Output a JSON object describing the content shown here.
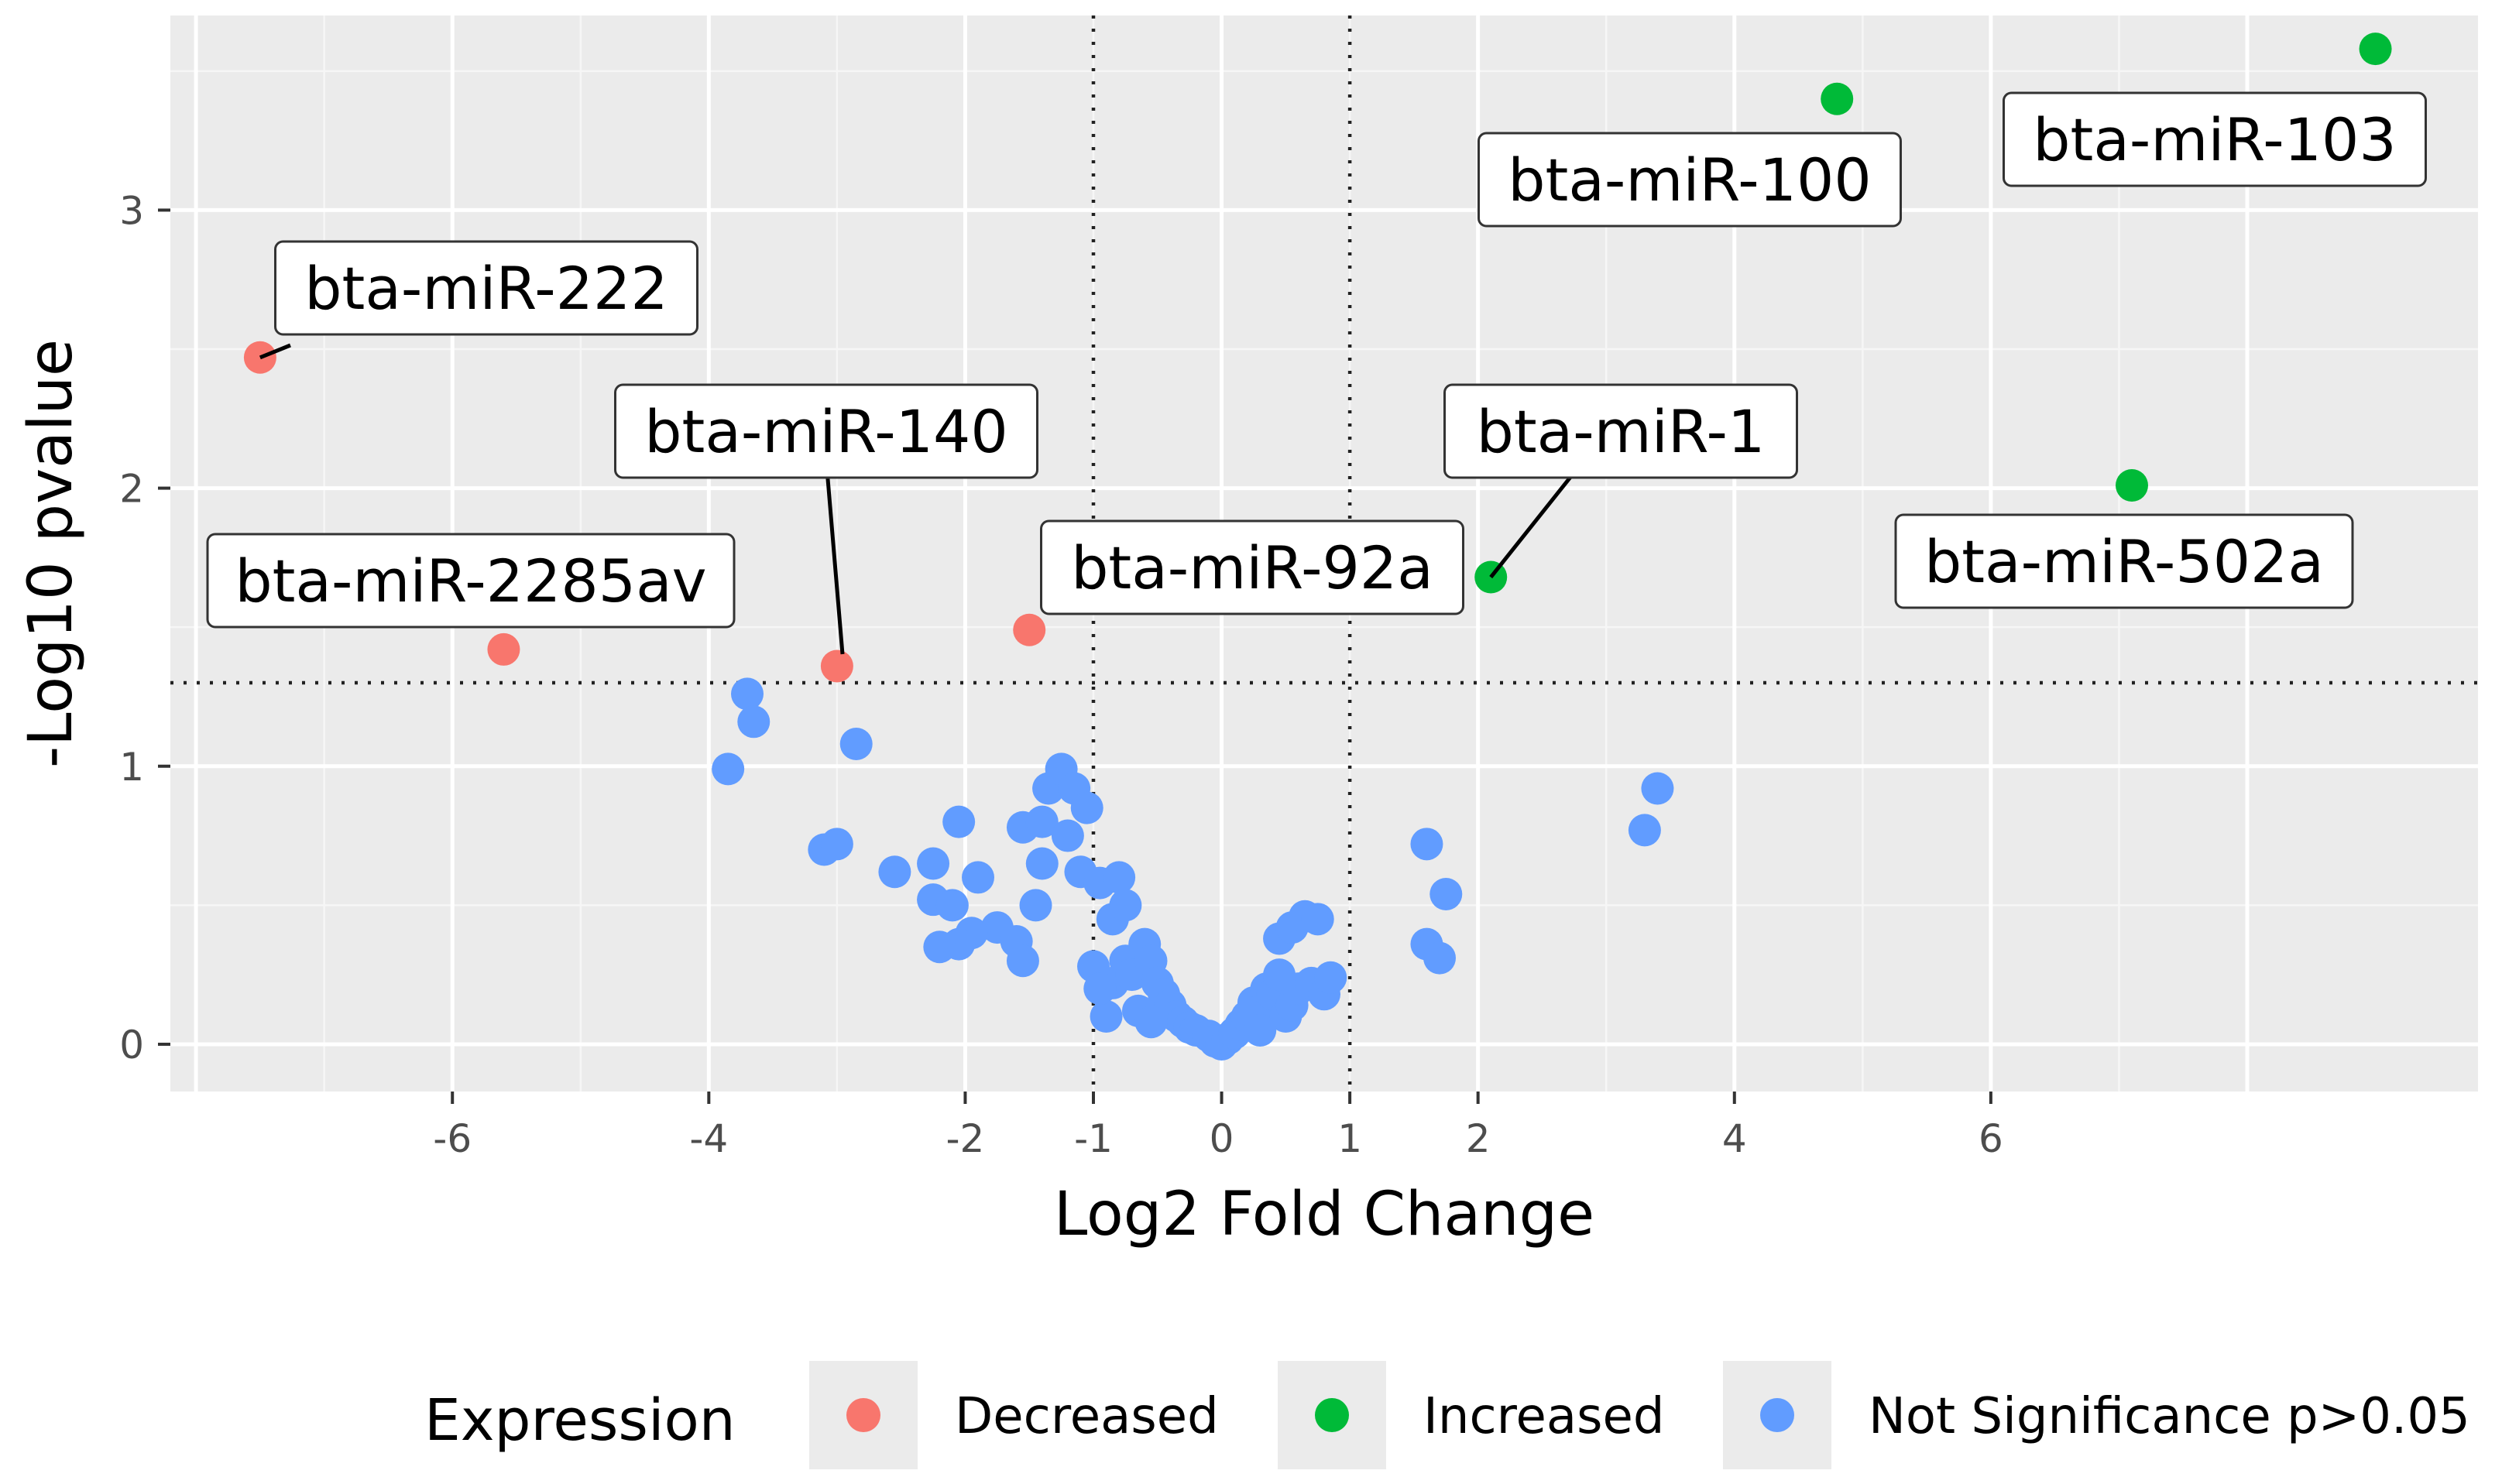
{
  "chart_data": {
    "type": "scatter",
    "xlabel": "Log2 Fold Change",
    "ylabel": "-Log10 pvalue",
    "xlim": [
      -8.2,
      9.8
    ],
    "ylim": [
      -0.17,
      3.7
    ],
    "x_ticks": [
      -6,
      -4,
      -2,
      -1,
      0,
      1,
      2,
      4,
      6
    ],
    "y_ticks": [
      0,
      1,
      2,
      3
    ],
    "x_gridlines": [
      -8,
      -6,
      -4,
      -2,
      0,
      2,
      4,
      6,
      8
    ],
    "y_gridlines": [
      0,
      1,
      2,
      3
    ],
    "thresholds": {
      "x": [
        -1,
        1
      ],
      "y": 1.3
    },
    "legend": {
      "title": "Expression",
      "position": "bottom",
      "items": [
        {
          "key": "decreased",
          "label": "Decreased",
          "color": "#F8766D"
        },
        {
          "key": "increased",
          "label": "Increased",
          "color": "#00BA38"
        },
        {
          "key": "ns",
          "label": "Not Significance p>0.05",
          "color": "#619CFF"
        }
      ]
    },
    "series": [
      {
        "name": "Decreased",
        "color": "#F8766D",
        "points": [
          {
            "x": -7.5,
            "y": 2.47,
            "label": "bta-miR-222"
          },
          {
            "x": -5.6,
            "y": 1.42,
            "label": "bta-miR-2285av"
          },
          {
            "x": -3.0,
            "y": 1.36,
            "label": "bta-miR-140"
          },
          {
            "x": -1.5,
            "y": 1.49,
            "label": "bta-miR-92a"
          }
        ]
      },
      {
        "name": "Increased",
        "color": "#00BA38",
        "points": [
          {
            "x": 4.8,
            "y": 3.4,
            "label": "bta-miR-100"
          },
          {
            "x": 9.0,
            "y": 3.58,
            "label": "bta-miR-103"
          },
          {
            "x": 2.1,
            "y": 1.68,
            "label": "bta-miR-1"
          },
          {
            "x": 7.1,
            "y": 2.01,
            "label": "bta-miR-502a"
          }
        ]
      },
      {
        "name": "Not Significance p>0.05",
        "color": "#619CFF",
        "points": [
          {
            "x": -3.7,
            "y": 1.26
          },
          {
            "x": -3.65,
            "y": 1.16
          },
          {
            "x": -3.85,
            "y": 0.99
          },
          {
            "x": -2.85,
            "y": 1.08
          },
          {
            "x": -3.1,
            "y": 0.7
          },
          {
            "x": -3.0,
            "y": 0.72
          },
          {
            "x": -2.55,
            "y": 0.62
          },
          {
            "x": -2.05,
            "y": 0.8
          },
          {
            "x": -2.25,
            "y": 0.65
          },
          {
            "x": -2.25,
            "y": 0.52
          },
          {
            "x": -2.1,
            "y": 0.5
          },
          {
            "x": -1.9,
            "y": 0.6
          },
          {
            "x": -1.75,
            "y": 0.42
          },
          {
            "x": -1.95,
            "y": 0.4
          },
          {
            "x": -2.05,
            "y": 0.36
          },
          {
            "x": -2.2,
            "y": 0.35
          },
          {
            "x": -1.6,
            "y": 0.37
          },
          {
            "x": -1.55,
            "y": 0.3
          },
          {
            "x": -1.45,
            "y": 0.5
          },
          {
            "x": -1.55,
            "y": 0.78
          },
          {
            "x": -1.4,
            "y": 0.8
          },
          {
            "x": -1.4,
            "y": 0.65
          },
          {
            "x": -1.35,
            "y": 0.92
          },
          {
            "x": -1.25,
            "y": 0.99
          },
          {
            "x": -1.15,
            "y": 0.92
          },
          {
            "x": -1.2,
            "y": 0.75
          },
          {
            "x": -1.05,
            "y": 0.85
          },
          {
            "x": -1.1,
            "y": 0.62
          },
          {
            "x": -0.95,
            "y": 0.58
          },
          {
            "x": -0.85,
            "y": 0.45
          },
          {
            "x": -0.8,
            "y": 0.6
          },
          {
            "x": -0.75,
            "y": 0.5
          },
          {
            "x": -1.0,
            "y": 0.28
          },
          {
            "x": -0.85,
            "y": 0.22
          },
          {
            "x": -0.75,
            "y": 0.3
          },
          {
            "x": -0.7,
            "y": 0.25
          },
          {
            "x": -0.6,
            "y": 0.36
          },
          {
            "x": -0.55,
            "y": 0.3
          },
          {
            "x": -0.5,
            "y": 0.22
          },
          {
            "x": -0.45,
            "y": 0.18
          },
          {
            "x": -0.4,
            "y": 0.14
          },
          {
            "x": -0.35,
            "y": 0.1
          },
          {
            "x": -0.3,
            "y": 0.08
          },
          {
            "x": -0.25,
            "y": 0.06
          },
          {
            "x": -0.2,
            "y": 0.05
          },
          {
            "x": -0.1,
            "y": 0.03
          },
          {
            "x": -0.05,
            "y": 0.01
          },
          {
            "x": 0.0,
            "y": 0.0
          },
          {
            "x": 0.05,
            "y": 0.02
          },
          {
            "x": 0.1,
            "y": 0.04
          },
          {
            "x": -0.65,
            "y": 0.12
          },
          {
            "x": -0.9,
            "y": 0.1
          },
          {
            "x": -0.95,
            "y": 0.2
          },
          {
            "x": -0.55,
            "y": 0.08
          },
          {
            "x": 0.15,
            "y": 0.07
          },
          {
            "x": 0.2,
            "y": 0.1
          },
          {
            "x": 0.25,
            "y": 0.15
          },
          {
            "x": 0.3,
            "y": 0.12
          },
          {
            "x": 0.35,
            "y": 0.2
          },
          {
            "x": 0.4,
            "y": 0.18
          },
          {
            "x": 0.45,
            "y": 0.25
          },
          {
            "x": 0.5,
            "y": 0.1
          },
          {
            "x": 0.55,
            "y": 0.14
          },
          {
            "x": 0.6,
            "y": 0.2
          },
          {
            "x": 0.3,
            "y": 0.05
          },
          {
            "x": 0.45,
            "y": 0.38
          },
          {
            "x": 0.55,
            "y": 0.42
          },
          {
            "x": 0.65,
            "y": 0.46
          },
          {
            "x": 0.75,
            "y": 0.45
          },
          {
            "x": 0.7,
            "y": 0.22
          },
          {
            "x": 0.8,
            "y": 0.18
          },
          {
            "x": 0.85,
            "y": 0.24
          },
          {
            "x": 1.6,
            "y": 0.72
          },
          {
            "x": 1.75,
            "y": 0.54
          },
          {
            "x": 1.6,
            "y": 0.36
          },
          {
            "x": 1.7,
            "y": 0.31
          },
          {
            "x": 3.3,
            "y": 0.77
          },
          {
            "x": 3.4,
            "y": 0.92
          }
        ]
      }
    ]
  }
}
